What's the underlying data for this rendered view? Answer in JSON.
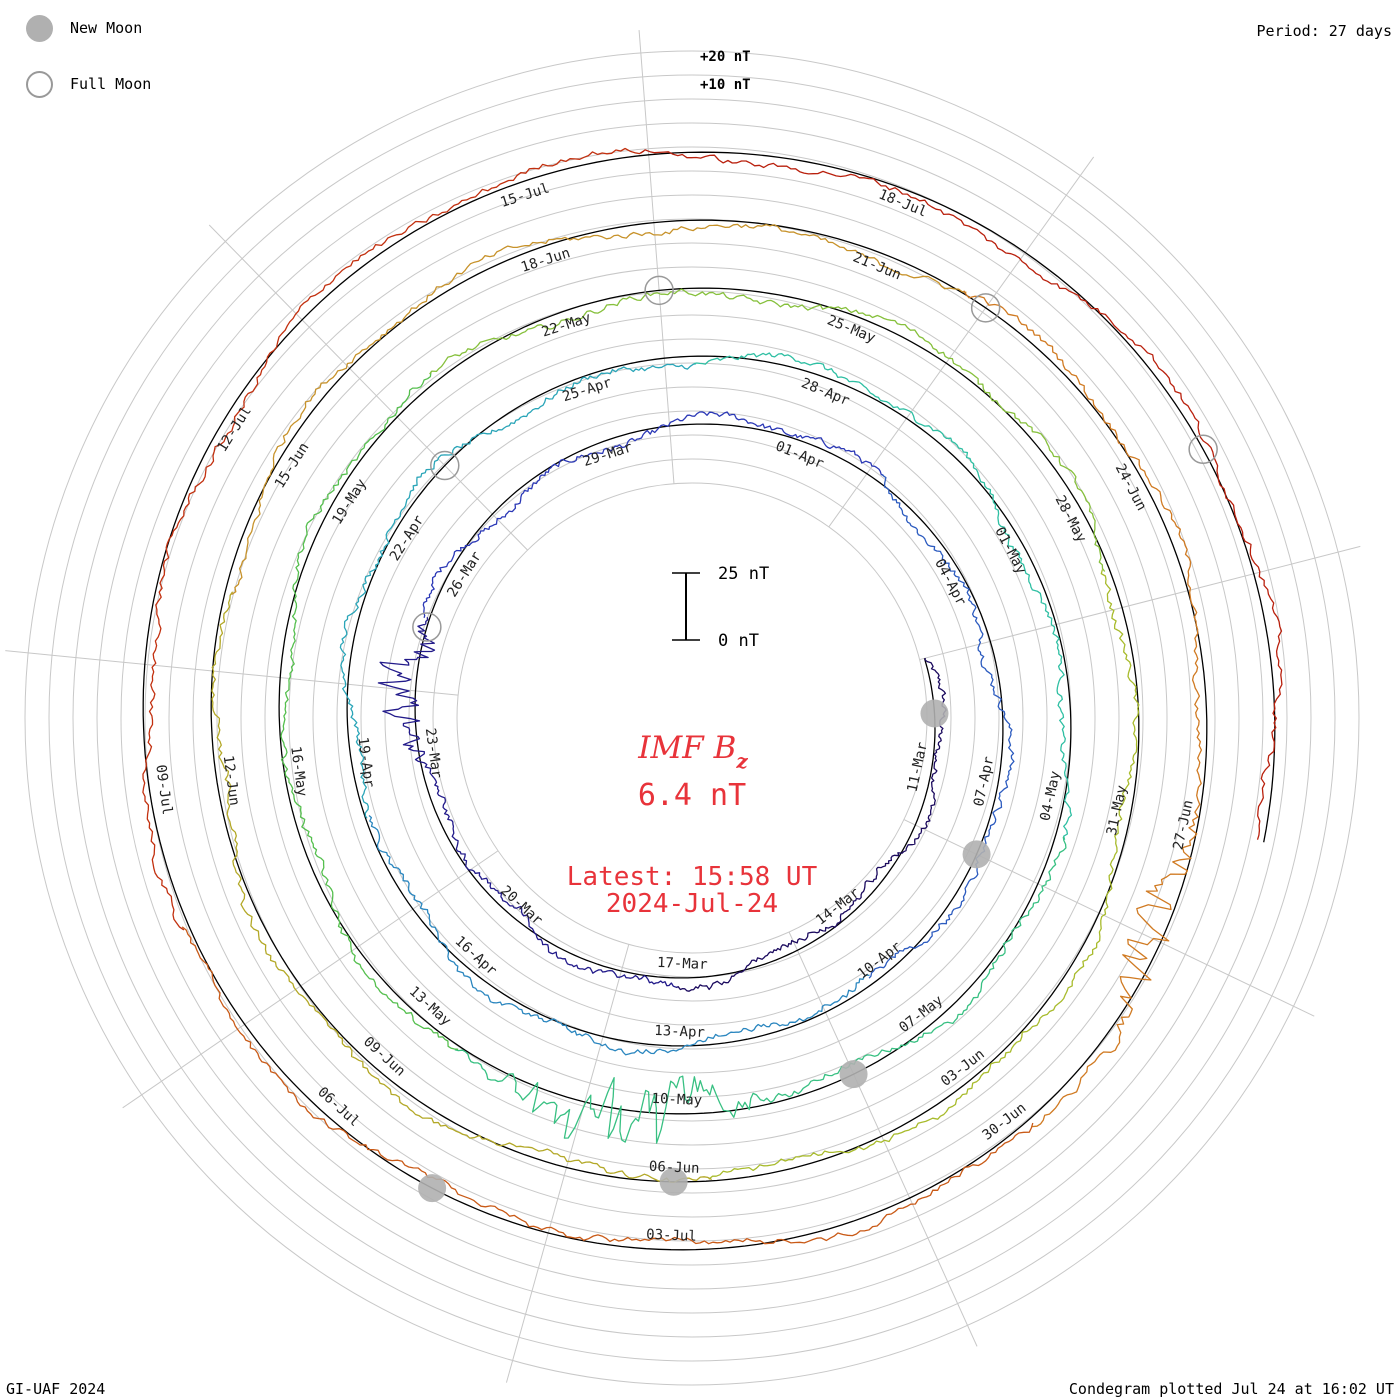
{
  "legend": {
    "new_moon_label": "New Moon",
    "full_moon_label": "Full Moon",
    "new_moon_color": "#b0b0b0",
    "full_moon_color": "#999999"
  },
  "period_label": "Period: 27 days",
  "footer": {
    "left": "GI-UAF 2024",
    "right": "Condegram plotted Jul 24 at 16:02 UT"
  },
  "chart_data": {
    "type": "spiral condegram",
    "title": "IMF Bz",
    "title_main": "IMF B",
    "title_subscript": "z",
    "current_value": "6.4 nT",
    "latest_time": "Latest: 15:58 UT",
    "latest_date": "2024-Jul-24",
    "period_days": 27,
    "scale_bar": {
      "top_label": "25 nT",
      "bottom_label": "0 nT",
      "span_nT": 25
    },
    "reference_labels": [
      "+20 nT",
      "+10 nT"
    ],
    "start_date": "2024-03-09",
    "end_date": "2024-07-24",
    "rotation_colors": [
      "#1a0a5c",
      "#2f2fb5",
      "#2aa0b8",
      "#33c19a",
      "#86c03c",
      "#b3b428",
      "#d2862a",
      "#c44a14"
    ],
    "series_colors_sequence": [
      "#1b0a5e",
      "#221a8a",
      "#2b38b6",
      "#2c5bbf",
      "#2a86bf",
      "#2aa5b8",
      "#2fbfa3",
      "#38c082",
      "#55bf4e",
      "#86c03c",
      "#a8bb2c",
      "#b3a827",
      "#c7922a",
      "#d07a22",
      "#c95a17",
      "#c2300f",
      "#b9200d"
    ],
    "date_labels": [
      "11-Mar",
      "14-Mar",
      "17-Mar",
      "20-Mar",
      "23-Mar",
      "26-Mar",
      "29-Mar",
      "01-Apr",
      "04-Apr",
      "07-Apr",
      "10-Apr",
      "13-Apr",
      "16-Apr",
      "19-Apr",
      "22-Apr",
      "25-Apr",
      "28-Apr",
      "01-May",
      "04-May",
      "07-May",
      "10-May",
      "13-May",
      "16-May",
      "19-May",
      "22-May",
      "25-May",
      "28-May",
      "31-May",
      "03-Jun",
      "06-Jun",
      "09-Jun",
      "12-Jun",
      "15-Jun",
      "18-Jun",
      "21-Jun",
      "24-Jun",
      "27-Jun",
      "30-Jun",
      "03-Jul",
      "06-Jul",
      "09-Jul",
      "12-Jul",
      "15-Jul",
      "18-Jul"
    ],
    "new_moons": [
      "2024-03-10",
      "2024-04-08",
      "2024-05-08",
      "2024-06-06",
      "2024-07-05"
    ],
    "full_moons": [
      "2024-03-25",
      "2024-04-23",
      "2024-05-23",
      "2024-06-22",
      "2024-07-21"
    ],
    "storm_dates": [
      "2024-03-24",
      "2024-05-10",
      "2024-05-11",
      "2024-06-28"
    ]
  }
}
